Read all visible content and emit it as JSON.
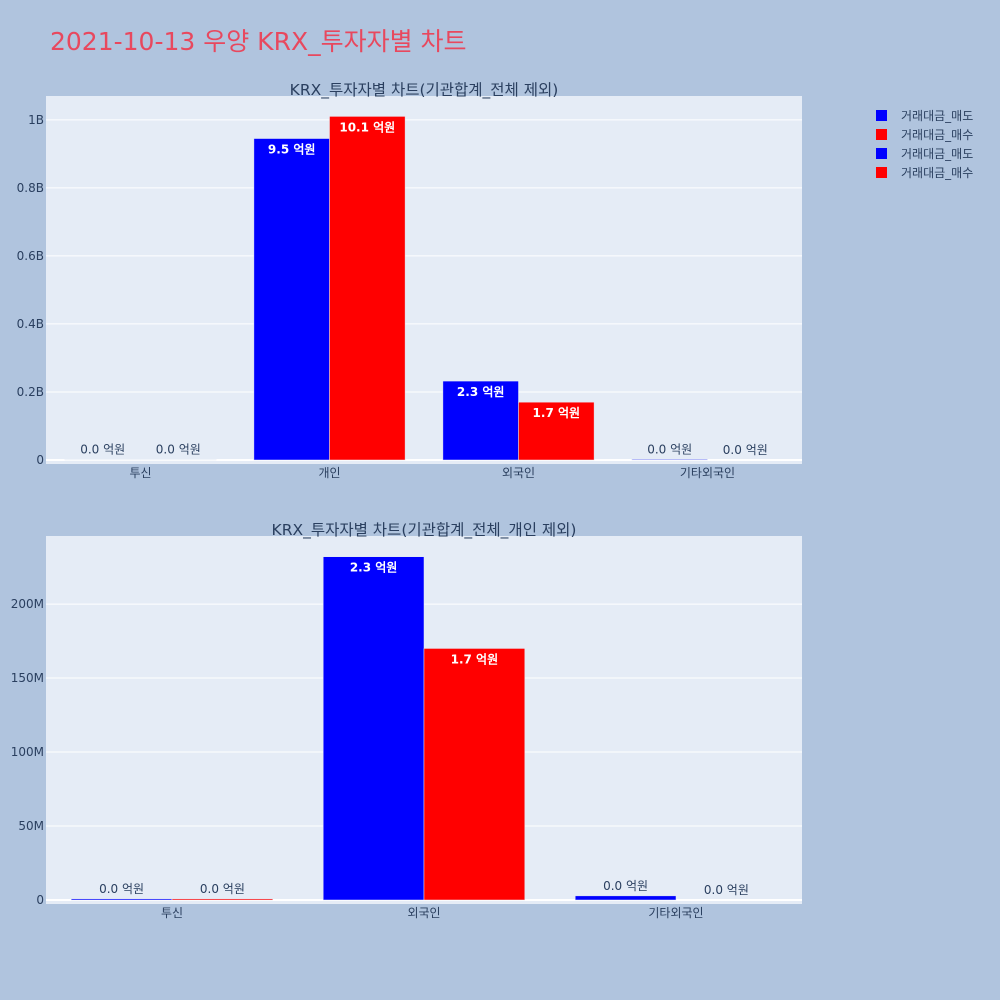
{
  "title": "2021-10-13 우양 KRX_투자자별 차트",
  "legend": [
    {
      "label": "거래대금_매도",
      "color": "#0000ff"
    },
    {
      "label": "거래대금_매수",
      "color": "#ff0000"
    },
    {
      "label": "거래대금_매도",
      "color": "#0000ff"
    },
    {
      "label": "거래대금_매수",
      "color": "#ff0000"
    }
  ],
  "colors": {
    "sell": "#0000ff",
    "buy": "#ff0000",
    "plot_bg": "#e5ecf6",
    "page_bg": "#b0c4de"
  },
  "chart_data": [
    {
      "type": "bar",
      "title": "KRX_투자자별 차트(기관합계_전체 제외)",
      "categories": [
        "투신",
        "개인",
        "외국인",
        "기타외국인"
      ],
      "ylim": [
        0,
        1070000000
      ],
      "yticks": [
        0,
        200000000,
        400000000,
        600000000,
        800000000,
        1000000000
      ],
      "ytick_labels": [
        "0",
        "0.2B",
        "0.4B",
        "0.6B",
        "0.8B",
        "1B"
      ],
      "grid": true,
      "series": [
        {
          "name": "거래대금_매도",
          "color": "#0000ff",
          "values": [
            1000000,
            945000000,
            232000000,
            2000000
          ],
          "labels": [
            "0.0 억원",
            "9.5 억원",
            "2.3 억원",
            "0.0 억원"
          ]
        },
        {
          "name": "거래대금_매수",
          "color": "#ff0000",
          "values": [
            1000000,
            1010000000,
            170000000,
            0
          ],
          "labels": [
            "0.0 억원",
            "10.1 억원",
            "1.7 억원",
            "0.0 억원"
          ]
        }
      ]
    },
    {
      "type": "bar",
      "title": "KRX_투자자별 차트(기관합계_전체_개인 제외)",
      "categories": [
        "투신",
        "외국인",
        "기타외국인"
      ],
      "ylim": [
        0,
        246000000
      ],
      "yticks": [
        0,
        50000000,
        100000000,
        150000000,
        200000000
      ],
      "ytick_labels": [
        "0",
        "50M",
        "100M",
        "150M",
        "200M"
      ],
      "grid": true,
      "series": [
        {
          "name": "거래대금_매도",
          "color": "#0000ff",
          "values": [
            800000,
            232000000,
            2800000
          ],
          "labels": [
            "0.0 억원",
            "2.3 억원",
            "0.0 억원"
          ]
        },
        {
          "name": "거래대금_매수",
          "color": "#ff0000",
          "values": [
            800000,
            170000000,
            0
          ],
          "labels": [
            "0.0 억원",
            "1.7 억원",
            "0.0 억원"
          ]
        }
      ]
    }
  ]
}
